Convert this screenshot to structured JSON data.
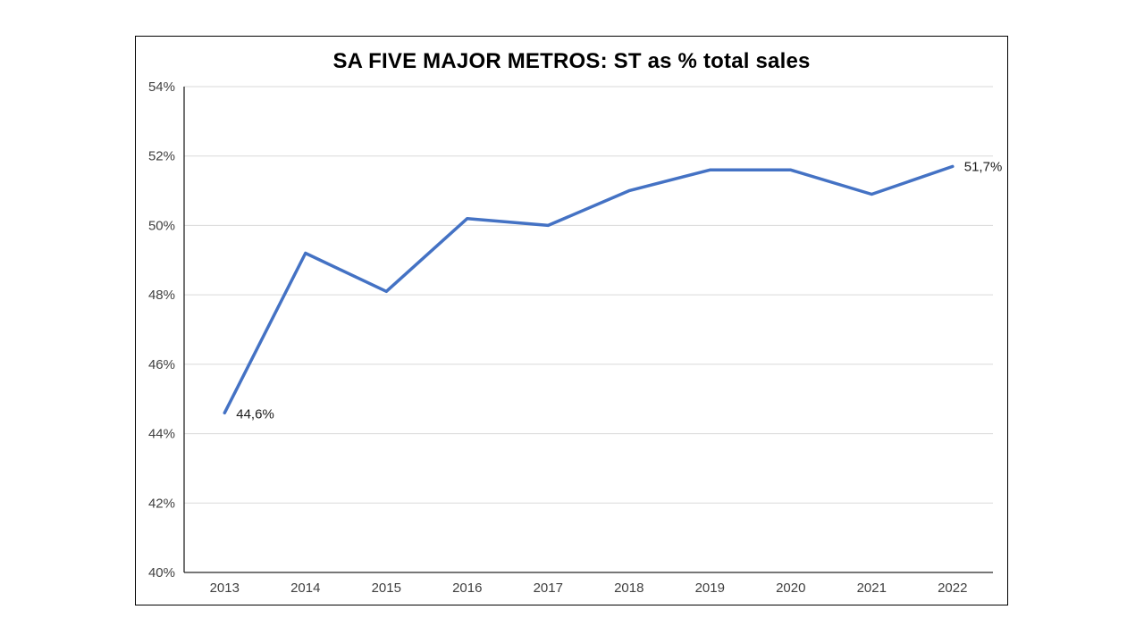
{
  "chart_data": {
    "type": "line",
    "title": "SA FIVE MAJOR METROS: ST as % total sales",
    "categories": [
      "2013",
      "2014",
      "2015",
      "2016",
      "2017",
      "2018",
      "2019",
      "2020",
      "2021",
      "2022"
    ],
    "series": [
      {
        "name": "ST as % total sales",
        "values": [
          44.6,
          49.2,
          48.1,
          50.2,
          50.0,
          51.0,
          51.6,
          51.6,
          50.9,
          51.7
        ]
      }
    ],
    "xlabel": "",
    "ylabel": "",
    "ylim": [
      40,
      54
    ],
    "ytick_step": 2,
    "ytick_labels": [
      "40%",
      "42%",
      "44%",
      "46%",
      "48%",
      "50%",
      "52%",
      "54%"
    ],
    "grid": "horizontal",
    "legend": "none",
    "point_labels": {
      "first": "44,6%",
      "last": "51,7%"
    },
    "colors": {
      "line": "#4472C4",
      "gridline": "#D9D9D9",
      "axis": "#262626",
      "tick_text": "#404040",
      "data_label_text": "#1a1a1a",
      "title_text": "#000000",
      "border": "#000000",
      "background": "#ffffff"
    }
  }
}
